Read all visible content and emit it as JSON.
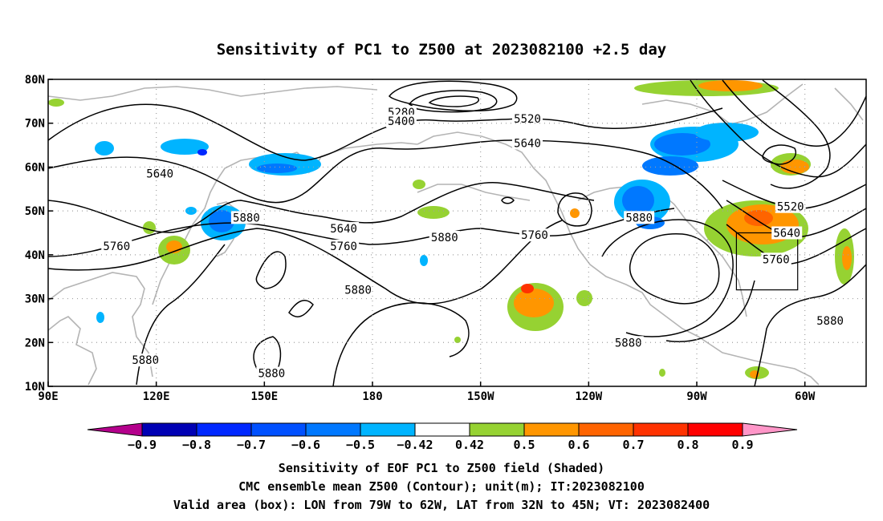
{
  "title": "Sensitivity of PC1 to Z500 at 2023082100 +2.5 day",
  "map": {
    "lon_ticks": [
      "90E",
      "120E",
      "150E",
      "180",
      "150W",
      "120W",
      "90W",
      "60W"
    ],
    "lat_ticks": [
      "80N",
      "70N",
      "60N",
      "50N",
      "40N",
      "30N",
      "20N",
      "10N"
    ],
    "lon_range": [
      90,
      317
    ],
    "lat_range": [
      10,
      80
    ],
    "grid": true,
    "valid_box": {
      "lon": [
        281,
        298
      ],
      "lat": [
        32,
        45
      ]
    },
    "contour_labels": [
      {
        "text": "5280",
        "lon": 188,
        "lat": 72.5
      },
      {
        "text": "5400",
        "lon": 188,
        "lat": 70.5
      },
      {
        "text": "5520",
        "lon": 223,
        "lat": 71
      },
      {
        "text": "5640",
        "lon": 223,
        "lat": 65.5
      },
      {
        "text": "5640",
        "lon": 121,
        "lat": 58.5
      },
      {
        "text": "5880",
        "lon": 145,
        "lat": 48.5
      },
      {
        "text": "5760",
        "lon": 109,
        "lat": 42
      },
      {
        "text": "5640",
        "lon": 172,
        "lat": 46
      },
      {
        "text": "5760",
        "lon": 172,
        "lat": 42
      },
      {
        "text": "5880",
        "lon": 200,
        "lat": 44
      },
      {
        "text": "5760",
        "lon": 225,
        "lat": 44.5
      },
      {
        "text": "5880",
        "lon": 176,
        "lat": 32
      },
      {
        "text": "5880",
        "lon": 254,
        "lat": 48.5
      },
      {
        "text": "5520",
        "lon": 296,
        "lat": 51
      },
      {
        "text": "5640",
        "lon": 295,
        "lat": 45
      },
      {
        "text": "5760",
        "lon": 292,
        "lat": 39
      },
      {
        "text": "5880",
        "lon": 307,
        "lat": 25
      },
      {
        "text": "5880",
        "lon": 251,
        "lat": 20
      },
      {
        "text": "5880",
        "lon": 117,
        "lat": 16
      },
      {
        "text": "5880",
        "lon": 152,
        "lat": 13
      }
    ]
  },
  "colorbar": {
    "labels": [
      "−0.9",
      "−0.8",
      "−0.7",
      "−0.6",
      "−0.5",
      "−0.42",
      "0.42",
      "0.5",
      "0.6",
      "0.7",
      "0.8",
      "0.9"
    ],
    "colors": [
      "#0000b4",
      "#0028ff",
      "#0050ff",
      "#0078ff",
      "#00b4ff",
      "#ffffff",
      "#96d232",
      "#ff9600",
      "#ff6400",
      "#ff3200",
      "#ff0000"
    ],
    "low_end": "#b4008c",
    "high_end": "#ff96c8"
  },
  "captions": {
    "line1": "Sensitivity of EOF PC1 to Z500 field (Shaded)",
    "line2": "CMC ensemble mean Z500 (Contour); unit(m); IT:2023082100",
    "line3": "Valid area (box): LON from 79W to 62W, LAT from 32N to 45N; VT: 2023082400"
  }
}
